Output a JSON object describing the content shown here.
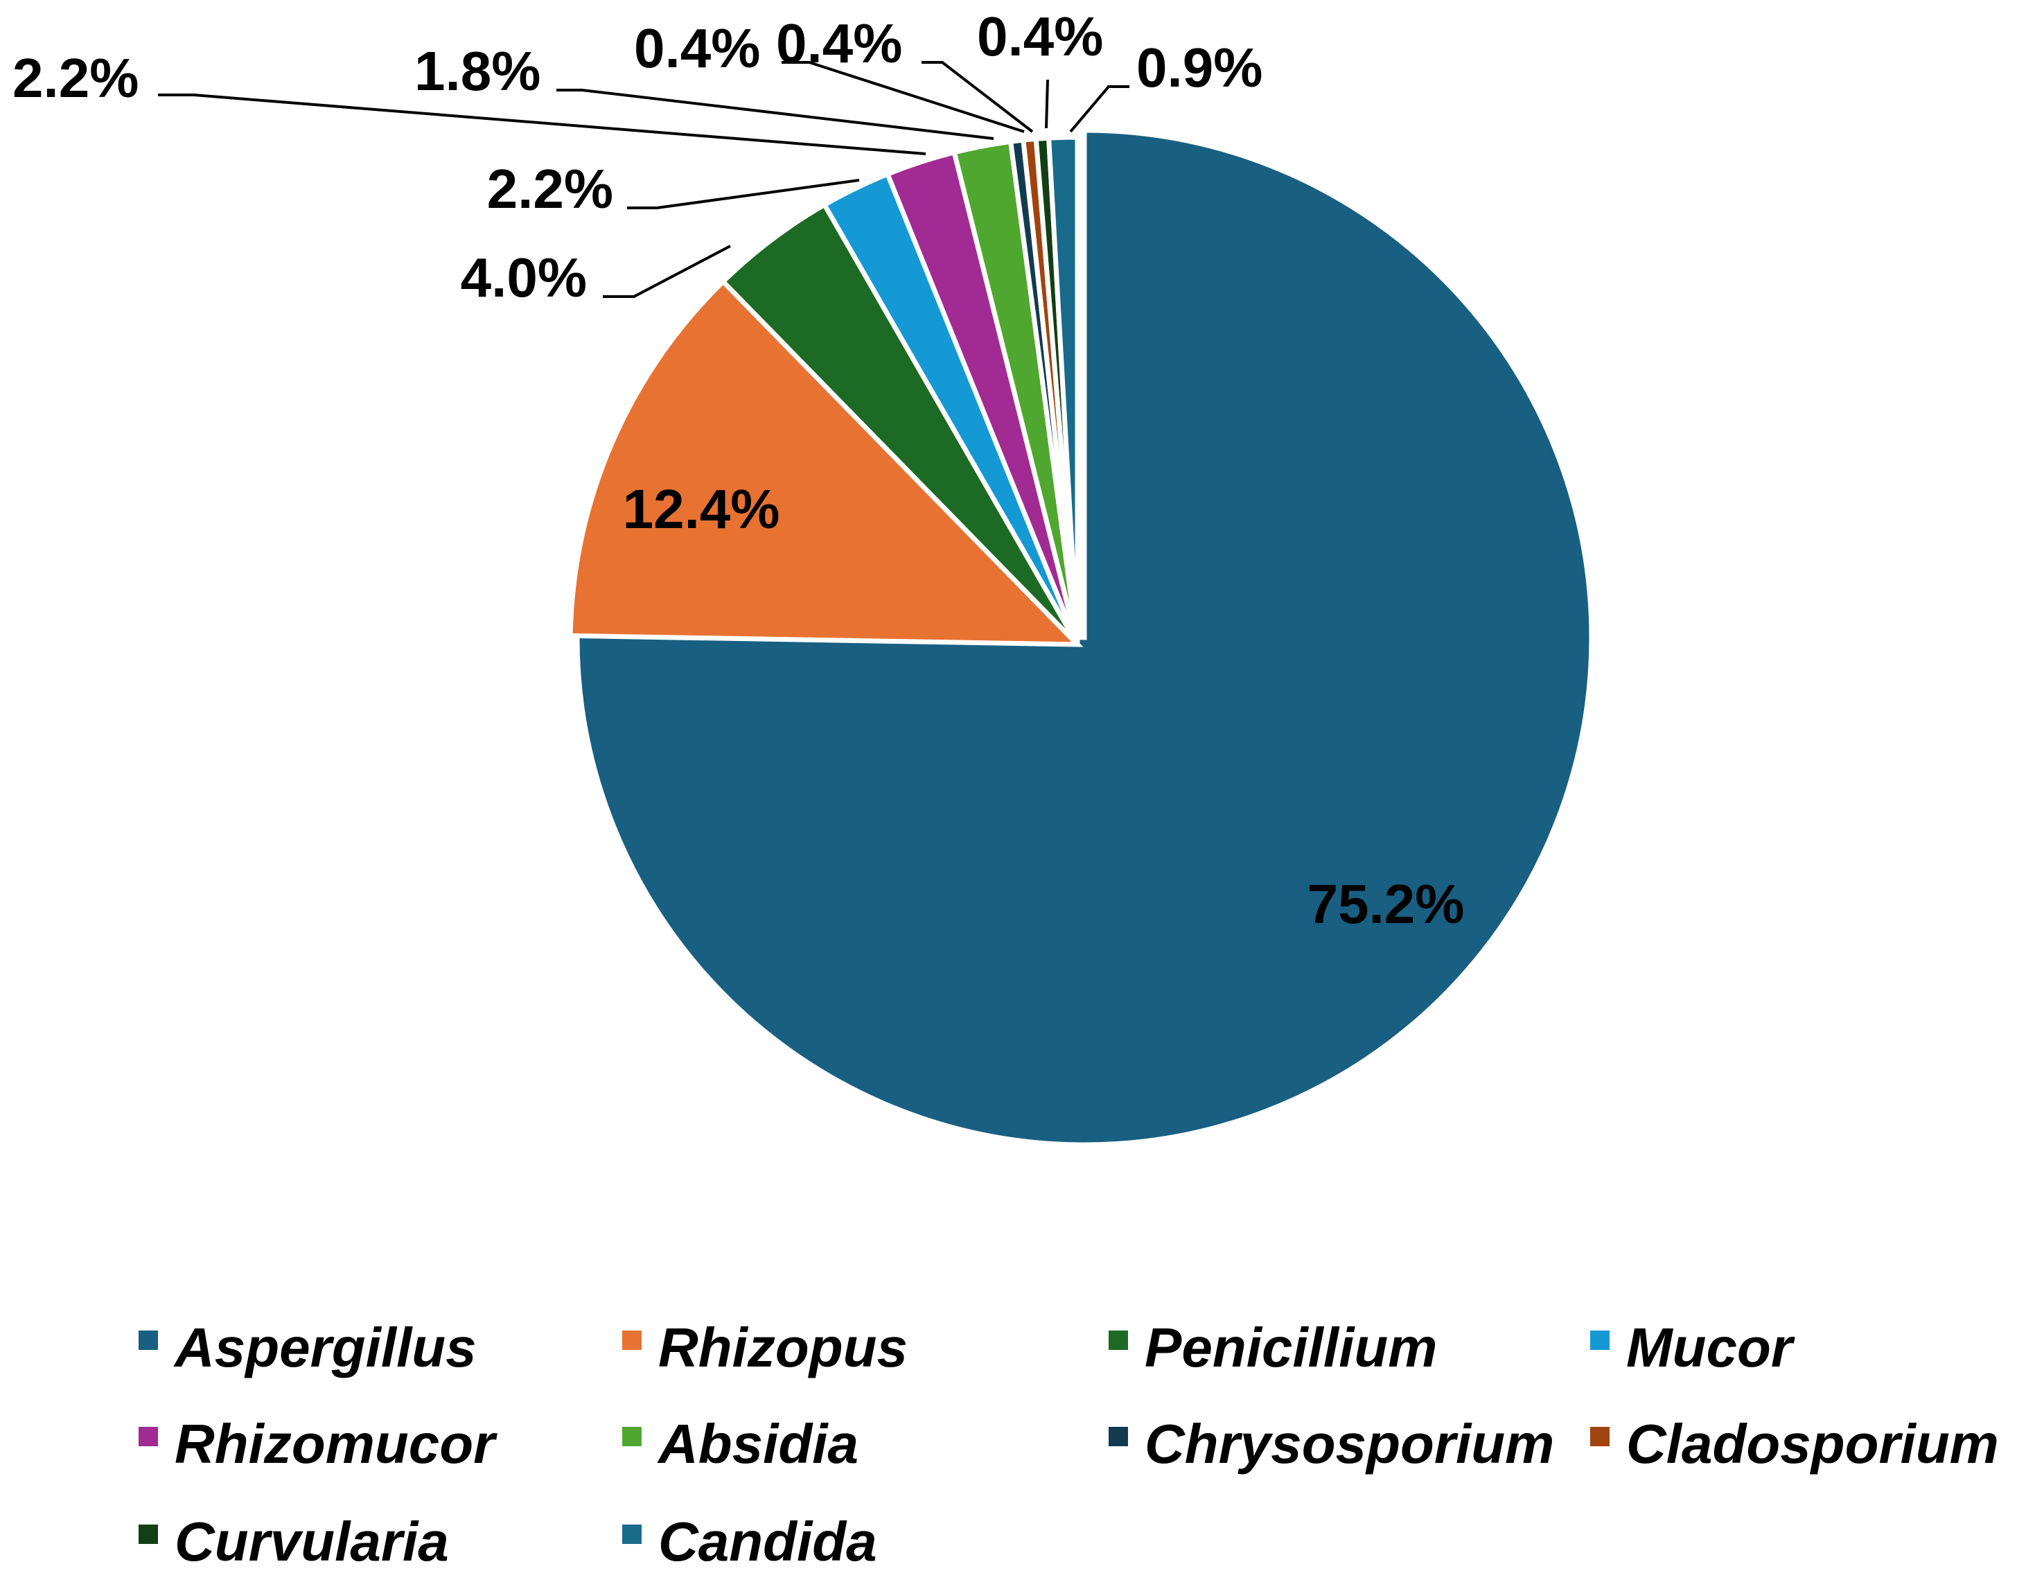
{
  "chart_data": {
    "type": "pie",
    "start_angle_deg": 0,
    "direction": "clockwise",
    "exploded_slice": "Aspergillus",
    "legend_position": "bottom",
    "slices": [
      {
        "name": "Aspergillus",
        "value": 75.2,
        "label": "75.2%",
        "color": "#185F82"
      },
      {
        "name": "Rhizopus",
        "value": 12.4,
        "label": "12.4%",
        "color": "#E87232"
      },
      {
        "name": "Penicillium",
        "value": 4.0,
        "label": "4.0%",
        "color": "#1C6A23"
      },
      {
        "name": "Mucor",
        "value": 2.2,
        "label": "2.2%",
        "color": "#1599D4"
      },
      {
        "name": "Rhizomucor",
        "value": 2.2,
        "label": "2.2%",
        "color": "#A12B92"
      },
      {
        "name": "Absidia",
        "value": 1.8,
        "label": "1.8%",
        "color": "#4FA72F"
      },
      {
        "name": "Chrysosporium",
        "value": 0.4,
        "label": "0.4%",
        "color": "#143A52"
      },
      {
        "name": "Cladosporium",
        "value": 0.4,
        "label": "0.4%",
        "color": "#A1430F"
      },
      {
        "name": "Curvularia",
        "value": 0.4,
        "label": "0.4%",
        "color": "#123F15"
      },
      {
        "name": "Candida",
        "value": 0.9,
        "label": "0.9%",
        "color": "#1A6A8C"
      }
    ]
  }
}
